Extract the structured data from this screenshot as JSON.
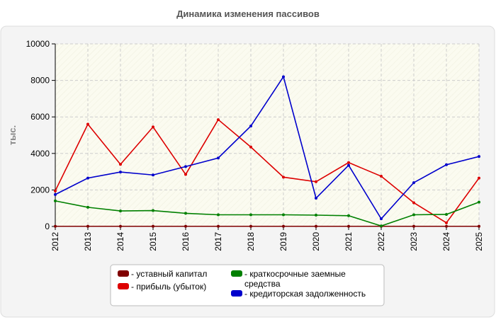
{
  "chart_data": {
    "type": "line",
    "title": "Динамика изменения пассивов",
    "ylabel": "тыс.",
    "xlabel": "",
    "ylim": [
      0,
      10000
    ],
    "yticks": [
      0,
      2000,
      4000,
      6000,
      8000,
      10000
    ],
    "categories": [
      "2012",
      "2013",
      "2014",
      "2015",
      "2016",
      "2017",
      "2018",
      "2019",
      "2020",
      "2021",
      "2022",
      "2023",
      "2024",
      "2025"
    ],
    "grid": true,
    "legend_position": "bottom",
    "series": [
      {
        "name": "уставный капитал",
        "color": "#800000",
        "values": [
          10,
          10,
          10,
          10,
          10,
          10,
          10,
          10,
          10,
          10,
          10,
          10,
          10,
          10
        ]
      },
      {
        "name": "прибыль (убыток)",
        "color": "#dd0000",
        "values": [
          1950,
          5600,
          3400,
          5450,
          2850,
          5850,
          4350,
          2700,
          2450,
          3500,
          2750,
          1300,
          200,
          2650
        ]
      },
      {
        "name": "краткосрочные заемные средства",
        "color": "#008000",
        "values": [
          1400,
          1050,
          850,
          870,
          720,
          640,
          640,
          640,
          620,
          590,
          30,
          640,
          660,
          1330
        ]
      },
      {
        "name": "кредиторская задолженность",
        "color": "#0000cc",
        "values": [
          1750,
          2650,
          2980,
          2820,
          3280,
          3750,
          5500,
          8200,
          1550,
          3350,
          420,
          2400,
          3380,
          3830
        ]
      }
    ]
  }
}
